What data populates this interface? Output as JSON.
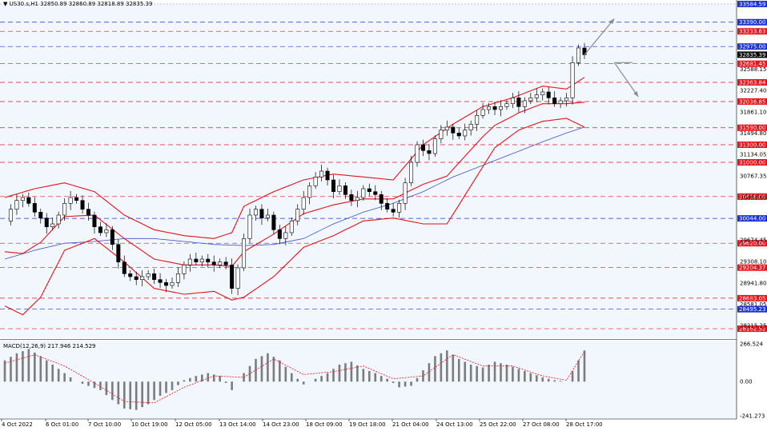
{
  "header": {
    "symbol_line": "US30.s,H1  32850.89 32860.89 32818.89 32835.39",
    "indicator_label": "MACD(12,26,9) 217.946 214.529"
  },
  "colors": {
    "background": "#f2f7fd",
    "bullish": "#000000",
    "bollinger": "#e8121a",
    "ma": "#3c52c8",
    "red_level": "#e8121a",
    "blue_level": "#1a31d8",
    "macd_hist": "#7c7c7c",
    "macd_signal": "#e8121a"
  },
  "chart_data": [
    {
      "type": "candlestick",
      "title": "",
      "symbol": "US30.s",
      "timeframe": "H1",
      "ohlc_last": {
        "open": 32850.89,
        "high": 32860.89,
        "low": 32818.89,
        "close": 32835.39
      },
      "y_axis": {
        "range": [
          28000,
          33700
        ],
        "tick_labels": [
          "32588.15",
          "32227.40",
          "31861.10",
          "31494.80",
          "31134.05",
          "30767.35",
          "30401.60",
          "29674.45",
          "29308.10",
          "28941.80",
          "28581.05",
          "28215.25"
        ]
      },
      "x_axis": {
        "tick_labels": [
          "4 Oct 2022",
          "6 Oct 01:00",
          "7 Oct 10:00",
          "10 Oct 19:00",
          "12 Oct 05:00",
          "13 Oct 14:00",
          "14 Oct 23:00",
          "18 Oct 09:00",
          "19 Oct 18:00",
          "21 Oct 04:00",
          "24 Oct 13:00",
          "25 Oct 22:00",
          "27 Oct 08:00",
          "28 Oct 17:00"
        ]
      },
      "current_price": {
        "value": 32835.39,
        "label": "32835.39"
      },
      "top_price": {
        "value": 33584.59,
        "label": "33584.59"
      },
      "levels": [
        {
          "value": 33390.0,
          "label": "33390.00",
          "color": "blue"
        },
        {
          "value": 33233.63,
          "label": "33233.63",
          "color": "red"
        },
        {
          "value": 32975.0,
          "label": "32975.00",
          "color": "blue"
        },
        {
          "value": 32681.45,
          "label": "32681.45",
          "color": "red"
        },
        {
          "value": 32363.84,
          "label": "32363.84",
          "color": "red"
        },
        {
          "value": 32036.85,
          "label": "32036.85",
          "color": "red"
        },
        {
          "value": 31590.0,
          "label": "31590.00",
          "color": "red"
        },
        {
          "value": 31300.0,
          "label": "31300.00",
          "color": "red"
        },
        {
          "value": 31000.0,
          "label": "31000.00",
          "color": "red"
        },
        {
          "value": 30416.0,
          "label": "30416.00",
          "color": "red"
        },
        {
          "value": 30044.0,
          "label": "30044.00",
          "color": "blue"
        },
        {
          "value": 29620.0,
          "label": "29620.00",
          "color": "red"
        },
        {
          "value": 29204.37,
          "label": "29204.37",
          "color": "red"
        },
        {
          "value": 28683.05,
          "label": "28683.05",
          "color": "red"
        },
        {
          "value": 28495.23,
          "label": "28495.23",
          "color": "blue"
        },
        {
          "value": 28162.52,
          "label": "28162.52",
          "color": "red"
        }
      ],
      "close_path": [
        [
          0,
          30000
        ],
        [
          1,
          30200
        ],
        [
          2,
          30350
        ],
        [
          3,
          30400
        ],
        [
          4,
          30300
        ],
        [
          5,
          30150
        ],
        [
          6,
          30050
        ],
        [
          7,
          29900
        ],
        [
          8,
          29950
        ],
        [
          9,
          30100
        ],
        [
          10,
          30300
        ],
        [
          11,
          30400
        ],
        [
          12,
          30350
        ],
        [
          13,
          30200
        ],
        [
          14,
          30100
        ],
        [
          15,
          29900
        ],
        [
          16,
          29800
        ],
        [
          17,
          29850
        ],
        [
          18,
          29600
        ],
        [
          19,
          29300
        ],
        [
          20,
          29100
        ],
        [
          21,
          29050
        ],
        [
          22,
          29000
        ],
        [
          23,
          29050
        ],
        [
          24,
          29100
        ],
        [
          25,
          29000
        ],
        [
          26,
          28950
        ],
        [
          27,
          28900
        ],
        [
          28,
          28950
        ],
        [
          29,
          29100
        ],
        [
          30,
          29250
        ],
        [
          31,
          29350
        ],
        [
          32,
          29300
        ],
        [
          33,
          29350
        ],
        [
          34,
          29300
        ],
        [
          35,
          29250
        ],
        [
          36,
          29300
        ],
        [
          37,
          29250
        ],
        [
          38,
          28850
        ],
        [
          39,
          29200
        ],
        [
          40,
          29700
        ],
        [
          41,
          30100
        ],
        [
          42,
          30200
        ],
        [
          43,
          30050
        ],
        [
          44,
          30100
        ],
        [
          45,
          29850
        ],
        [
          46,
          29700
        ],
        [
          47,
          29800
        ],
        [
          48,
          30000
        ],
        [
          49,
          30200
        ],
        [
          50,
          30400
        ],
        [
          51,
          30600
        ],
        [
          52,
          30750
        ],
        [
          53,
          30850
        ],
        [
          54,
          30700
        ],
        [
          55,
          30500
        ],
        [
          56,
          30600
        ],
        [
          57,
          30450
        ],
        [
          58,
          30350
        ],
        [
          59,
          30400
        ],
        [
          60,
          30550
        ],
        [
          61,
          30500
        ],
        [
          62,
          30450
        ],
        [
          63,
          30300
        ],
        [
          64,
          30200
        ],
        [
          65,
          30150
        ],
        [
          66,
          30300
        ],
        [
          67,
          30650
        ],
        [
          68,
          31000
        ],
        [
          69,
          31300
        ],
        [
          70,
          31200
        ],
        [
          71,
          31150
        ],
        [
          72,
          31400
        ],
        [
          73,
          31550
        ],
        [
          74,
          31600
        ],
        [
          75,
          31500
        ],
        [
          76,
          31450
        ],
        [
          77,
          31550
        ],
        [
          78,
          31650
        ],
        [
          79,
          31800
        ],
        [
          80,
          31900
        ],
        [
          81,
          31950
        ],
        [
          82,
          31900
        ],
        [
          83,
          31950
        ],
        [
          84,
          32000
        ],
        [
          85,
          32100
        ],
        [
          86,
          31950
        ],
        [
          87,
          32050
        ],
        [
          88,
          32100
        ],
        [
          89,
          32150
        ],
        [
          90,
          32200
        ],
        [
          91,
          32100
        ],
        [
          92,
          32000
        ],
        [
          93,
          32050
        ],
        [
          94,
          32100
        ],
        [
          95,
          32700
        ],
        [
          96,
          32950
        ],
        [
          97,
          32835
        ]
      ],
      "bollinger_upper": [
        [
          0,
          30400
        ],
        [
          5,
          30550
        ],
        [
          10,
          30650
        ],
        [
          15,
          30500
        ],
        [
          20,
          30100
        ],
        [
          25,
          29850
        ],
        [
          30,
          29750
        ],
        [
          35,
          29700
        ],
        [
          38,
          29800
        ],
        [
          40,
          30250
        ],
        [
          45,
          30500
        ],
        [
          50,
          30700
        ],
        [
          55,
          30800
        ],
        [
          60,
          30750
        ],
        [
          65,
          30700
        ],
        [
          70,
          31300
        ],
        [
          75,
          31650
        ],
        [
          80,
          31950
        ],
        [
          85,
          32100
        ],
        [
          90,
          32300
        ],
        [
          94,
          32250
        ],
        [
          97,
          32450
        ]
      ],
      "bollinger_lower": [
        [
          0,
          28550
        ],
        [
          3,
          28400
        ],
        [
          6,
          28700
        ],
        [
          10,
          29500
        ],
        [
          15,
          29700
        ],
        [
          20,
          29300
        ],
        [
          25,
          28850
        ],
        [
          30,
          28750
        ],
        [
          35,
          28800
        ],
        [
          38,
          28650
        ],
        [
          40,
          28700
        ],
        [
          45,
          29050
        ],
        [
          50,
          29550
        ],
        [
          55,
          29750
        ],
        [
          60,
          30000
        ],
        [
          65,
          30050
        ],
        [
          70,
          29950
        ],
        [
          74,
          29950
        ],
        [
          78,
          30600
        ],
        [
          82,
          31250
        ],
        [
          86,
          31550
        ],
        [
          90,
          31700
        ],
        [
          94,
          31750
        ],
        [
          97,
          31600
        ]
      ],
      "ma_line": [
        [
          0,
          29350
        ],
        [
          5,
          29500
        ],
        [
          10,
          29620
        ],
        [
          15,
          29650
        ],
        [
          20,
          29700
        ],
        [
          25,
          29700
        ],
        [
          30,
          29650
        ],
        [
          35,
          29600
        ],
        [
          40,
          29580
        ],
        [
          45,
          29600
        ],
        [
          50,
          29700
        ],
        [
          55,
          29950
        ],
        [
          60,
          30150
        ],
        [
          65,
          30300
        ],
        [
          70,
          30500
        ],
        [
          75,
          30750
        ],
        [
          80,
          30950
        ],
        [
          85,
          31150
        ],
        [
          90,
          31350
        ],
        [
          94,
          31500
        ],
        [
          97,
          31600
        ]
      ],
      "projection": [
        [
          97,
          32835
        ],
        [
          102,
          33450
        ],
        [
          102,
          32700
        ],
        [
          105,
          32700
        ],
        [
          102,
          32700
        ],
        [
          106,
          32120
        ]
      ]
    },
    {
      "type": "bar",
      "title": "",
      "indicator": "MACD(12,26,9)",
      "macd_value": 217.946,
      "signal_value": 214.529,
      "y_axis": {
        "range": [
          -241.273,
          266.524
        ],
        "tick_labels": [
          "266.524",
          "0.00",
          "-241.273"
        ]
      },
      "histogram": [
        [
          0,
          150
        ],
        [
          2,
          200
        ],
        [
          4,
          230
        ],
        [
          6,
          180
        ],
        [
          8,
          120
        ],
        [
          10,
          60
        ],
        [
          12,
          0
        ],
        [
          14,
          -30
        ],
        [
          16,
          -60
        ],
        [
          18,
          -130
        ],
        [
          20,
          -190
        ],
        [
          22,
          -200
        ],
        [
          24,
          -160
        ],
        [
          26,
          -100
        ],
        [
          28,
          -60
        ],
        [
          30,
          10
        ],
        [
          32,
          40
        ],
        [
          34,
          60
        ],
        [
          36,
          40
        ],
        [
          38,
          -60
        ],
        [
          40,
          60
        ],
        [
          42,
          160
        ],
        [
          44,
          200
        ],
        [
          46,
          150
        ],
        [
          48,
          60
        ],
        [
          50,
          -20
        ],
        [
          52,
          20
        ],
        [
          54,
          60
        ],
        [
          56,
          120
        ],
        [
          58,
          140
        ],
        [
          60,
          90
        ],
        [
          62,
          60
        ],
        [
          64,
          20
        ],
        [
          66,
          -40
        ],
        [
          68,
          -30
        ],
        [
          70,
          80
        ],
        [
          72,
          180
        ],
        [
          74,
          220
        ],
        [
          76,
          160
        ],
        [
          78,
          120
        ],
        [
          80,
          100
        ],
        [
          82,
          140
        ],
        [
          84,
          120
        ],
        [
          86,
          90
        ],
        [
          88,
          60
        ],
        [
          90,
          30
        ],
        [
          92,
          10
        ],
        [
          94,
          0
        ],
        [
          96,
          150
        ],
        [
          97,
          220
        ]
      ],
      "signal": [
        [
          0,
          130
        ],
        [
          5,
          190
        ],
        [
          10,
          110
        ],
        [
          15,
          -10
        ],
        [
          20,
          -140
        ],
        [
          25,
          -150
        ],
        [
          30,
          -40
        ],
        [
          35,
          40
        ],
        [
          40,
          30
        ],
        [
          45,
          160
        ],
        [
          50,
          50
        ],
        [
          55,
          70
        ],
        [
          60,
          110
        ],
        [
          65,
          20
        ],
        [
          70,
          40
        ],
        [
          75,
          190
        ],
        [
          80,
          110
        ],
        [
          85,
          110
        ],
        [
          90,
          40
        ],
        [
          94,
          10
        ],
        [
          97,
          214.5
        ]
      ]
    }
  ]
}
